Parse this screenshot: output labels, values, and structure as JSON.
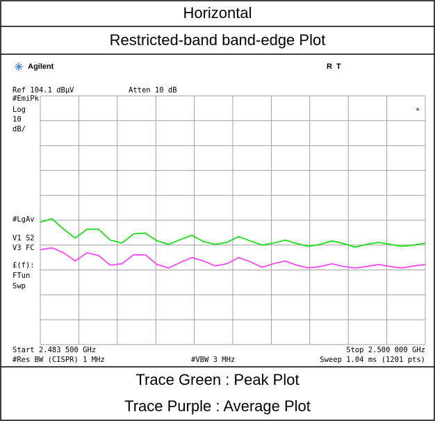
{
  "header": {
    "title": "Horizontal",
    "subtitle": "Restricted-band band-edge Plot"
  },
  "chart_data": {
    "type": "line",
    "brand": "Agilent",
    "status": "R  T",
    "reference": "Ref 104.1 dBµV",
    "attenuation": "Atten 10 dB",
    "left_labels": [
      "#EmiPk",
      "Log",
      "10",
      "dB/",
      "#LgAv",
      "V1  S2",
      "V3  FC",
      "£(f):",
      "FTun",
      "Swp"
    ],
    "marker": "*",
    "start": "Start 2.483 500 GHz",
    "stop": "Stop 2.500 000 GHz",
    "rbw": "#Res BW (CISPR) 1 MHz",
    "vbw": "#VBW 3 MHz",
    "sweep": "Sweep 1.04 ms (1201 pts)",
    "x": [
      2.4835,
      2.484,
      2.4845,
      2.485,
      2.4855,
      2.486,
      2.4865,
      2.487,
      2.4875,
      2.488,
      2.4885,
      2.489,
      2.4895,
      2.49,
      2.4905,
      2.491,
      2.4915,
      2.492,
      2.4925,
      2.493,
      2.4935,
      2.494,
      2.4945,
      2.495,
      2.4955,
      2.496,
      2.4965,
      2.497,
      2.4975,
      2.498,
      2.4985,
      2.499,
      2.4995,
      2.5
    ],
    "series": [
      {
        "name": "Peak",
        "color": "#00e000",
        "values": [
          53.3,
          54.7,
          50.5,
          46.9,
          50.5,
          50.5,
          46.1,
          44.9,
          48.6,
          48.9,
          45.8,
          44.4,
          46.3,
          48.0,
          45.5,
          44.4,
          45.2,
          47.5,
          45.8,
          44.1,
          44.9,
          46.1,
          44.7,
          43.6,
          44.4,
          45.8,
          44.7,
          43.3,
          44.4,
          45.2,
          44.4,
          43.6,
          44.1,
          44.9
        ]
      },
      {
        "name": "Average",
        "color": "#ff33ff",
        "values": [
          42.2,
          43.0,
          41.0,
          37.7,
          41.0,
          39.9,
          36.0,
          36.6,
          40.2,
          40.2,
          36.3,
          34.9,
          37.1,
          39.1,
          37.7,
          35.7,
          36.6,
          39.1,
          37.4,
          35.2,
          36.6,
          37.7,
          36.0,
          34.9,
          35.5,
          36.6,
          35.5,
          34.9,
          35.5,
          36.3,
          35.5,
          34.9,
          35.7,
          36.3
        ]
      }
    ],
    "xlim": [
      2.4835,
      2.5
    ],
    "ylim": [
      4.1,
      104.1
    ],
    "log_scale": false,
    "grid": true,
    "xticks": [
      2.4835,
      2.48515,
      2.4868,
      2.48845,
      2.4901,
      2.49175,
      2.4934,
      2.49505,
      2.4967,
      2.49835,
      2.5
    ],
    "yticks": [
      4.1,
      14.1,
      24.1,
      34.1,
      44.1,
      54.1,
      64.1,
      74.1,
      84.1,
      94.1,
      104.1
    ]
  },
  "footer": {
    "lines": [
      "Trace Green : Peak Plot",
      "Trace Purple : Average Plot"
    ]
  }
}
